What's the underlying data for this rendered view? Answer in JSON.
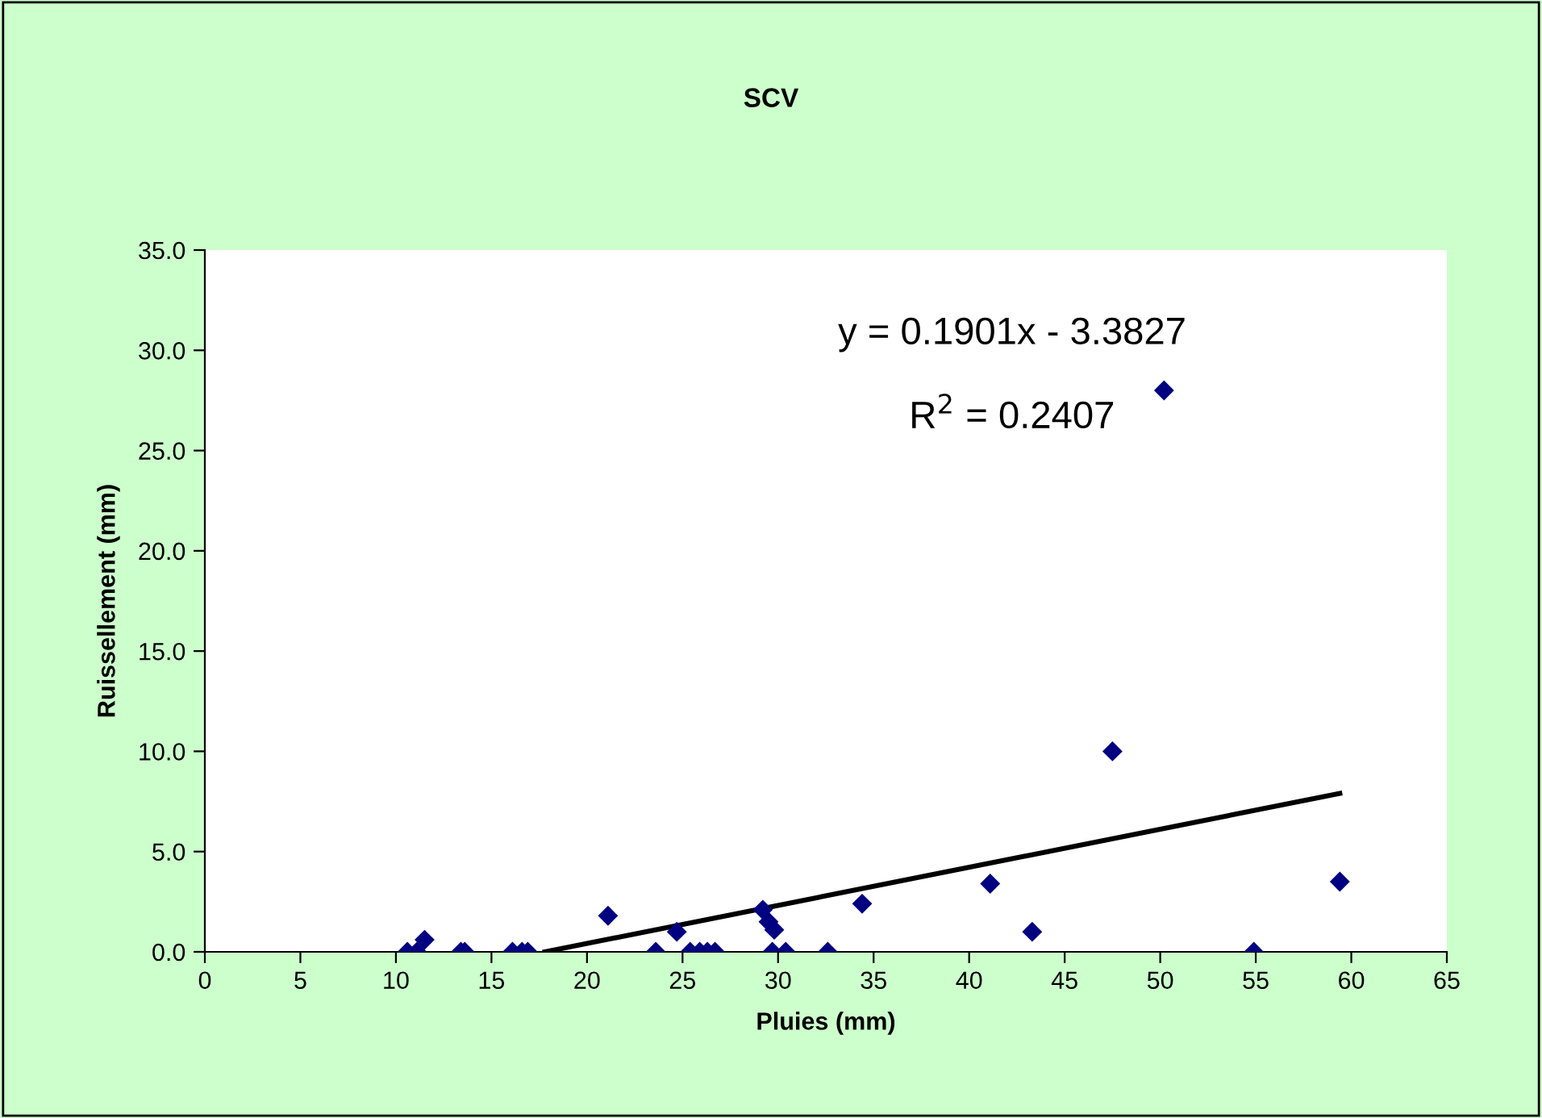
{
  "chart_data": {
    "type": "scatter",
    "title": "SCV",
    "xlabel": "Pluies (mm)",
    "ylabel": "Ruissellement (mm)",
    "xlim": [
      0,
      65
    ],
    "xticks": [
      0,
      5,
      10,
      15,
      20,
      25,
      30,
      35,
      40,
      45,
      50,
      55,
      60,
      65
    ],
    "ylim": [
      0,
      35
    ],
    "yticks": [
      {
        "value": 0,
        "label": "0.0"
      },
      {
        "value": 5,
        "label": "5.0"
      },
      {
        "value": 10,
        "label": "10.0"
      },
      {
        "value": 15,
        "label": "15.0"
      },
      {
        "value": 20,
        "label": "20.0"
      },
      {
        "value": 25,
        "label": "25.0"
      },
      {
        "value": 30,
        "label": "30.0"
      },
      {
        "value": 35,
        "label": "35.0"
      }
    ],
    "grid": false,
    "legend": false,
    "series": [
      {
        "marker": "diamond",
        "color": "#000080",
        "x": [
          10.6,
          11.1,
          11.5,
          13.4,
          13.6,
          16.1,
          16.6,
          16.9,
          21.1,
          23.6,
          24.7,
          25.4,
          25.9,
          26.3,
          26.7,
          29.2,
          29.5,
          29.8,
          29.7,
          30.4,
          32.6,
          34.4,
          41.1,
          43.3,
          47.5,
          50.2,
          54.9,
          59.4
        ],
        "values": [
          0,
          0,
          0.6,
          0,
          0,
          0,
          0,
          0,
          1.8,
          0,
          1.0,
          0,
          0,
          0,
          0,
          2.1,
          1.5,
          1.1,
          0,
          0,
          0,
          2.4,
          3.4,
          1.0,
          10.0,
          28.0,
          0,
          3.5
        ]
      },
      {
        "type": "line",
        "color": "#000000",
        "line_style": "solid",
        "x": [
          17.8,
          59.4
        ],
        "values": [
          0.0,
          7.9
        ]
      }
    ],
    "annotations": [
      "y = 0.1901x - 3.3827",
      "R$^{2}$ = 0.2407"
    ]
  }
}
